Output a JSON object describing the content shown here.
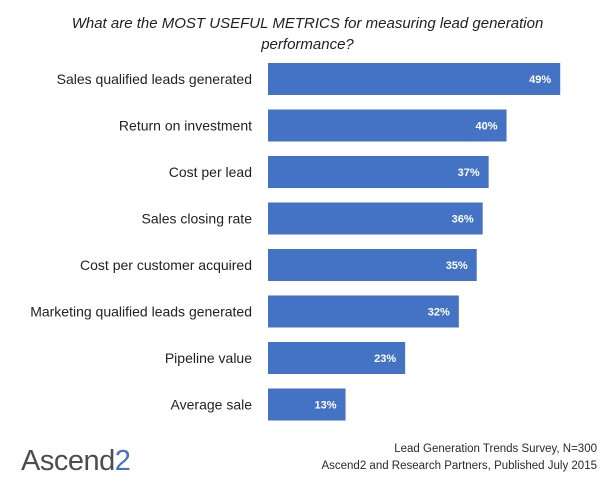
{
  "chart_data": {
    "type": "bar",
    "orientation": "horizontal",
    "title": "What are the MOST USEFUL METRICS for measuring lead generation performance?",
    "categories": [
      "Sales qualified leads generated",
      "Return on investment",
      "Cost per lead",
      "Sales closing rate",
      "Cost per customer acquired",
      "Marketing qualified leads generated",
      "Pipeline value",
      "Average sale"
    ],
    "values": [
      49,
      40,
      37,
      36,
      35,
      32,
      23,
      13
    ],
    "value_labels": [
      "49%",
      "40%",
      "37%",
      "36%",
      "35%",
      "32%",
      "23%",
      "13%"
    ],
    "unit": "%",
    "xlim": [
      0,
      55
    ],
    "grid": false,
    "legend": "none",
    "bar_color": "#4472c4"
  },
  "logo": {
    "text_main": "Ascend",
    "text_accent": "2",
    "main_color": "#4d4d4d",
    "accent_color": "#4472c4"
  },
  "footer": {
    "line1": "Lead Generation Trends Survey, N=300",
    "line2": "Ascend2 and Research Partners, Published July 2015"
  }
}
